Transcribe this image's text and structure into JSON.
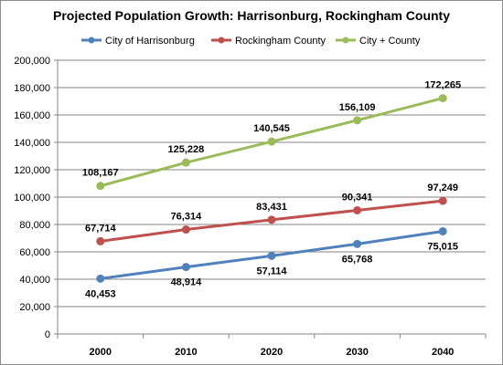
{
  "chart_data": {
    "type": "line",
    "title": "Projected Population Growth: Harrisonburg, Rockingham County",
    "xlabel": "",
    "ylabel": "",
    "categories": [
      "2000",
      "2010",
      "2020",
      "2030",
      "2040"
    ],
    "ylim": [
      0,
      200000
    ],
    "yticks": [
      0,
      20000,
      40000,
      60000,
      80000,
      100000,
      120000,
      140000,
      160000,
      180000,
      200000
    ],
    "ytick_labels": [
      "0",
      "20,000",
      "40,000",
      "60,000",
      "80,000",
      "100,000",
      "120,000",
      "140,000",
      "160,000",
      "180,000",
      "200,000"
    ],
    "grid": "horizontal",
    "legend": "top",
    "series": [
      {
        "name": "City of Harrisonburg",
        "color": "#4f81bd",
        "values": [
          40453,
          48914,
          57114,
          65768,
          75015
        ],
        "labels": [
          "40,453",
          "48,914",
          "57,114",
          "65,768",
          "75,015"
        ],
        "label_position": "below"
      },
      {
        "name": "Rockingham County",
        "color": "#c0504d",
        "values": [
          67714,
          76314,
          83431,
          90341,
          97249
        ],
        "labels": [
          "67,714",
          "76,314",
          "83,431",
          "90,341",
          "97,249"
        ],
        "label_position": "above"
      },
      {
        "name": "City + County",
        "color": "#9bbb59",
        "values": [
          108167,
          125228,
          140545,
          156109,
          172265
        ],
        "labels": [
          "108,167",
          "125,228",
          "140,545",
          "156,109",
          "172,265"
        ],
        "label_position": "above"
      }
    ]
  }
}
